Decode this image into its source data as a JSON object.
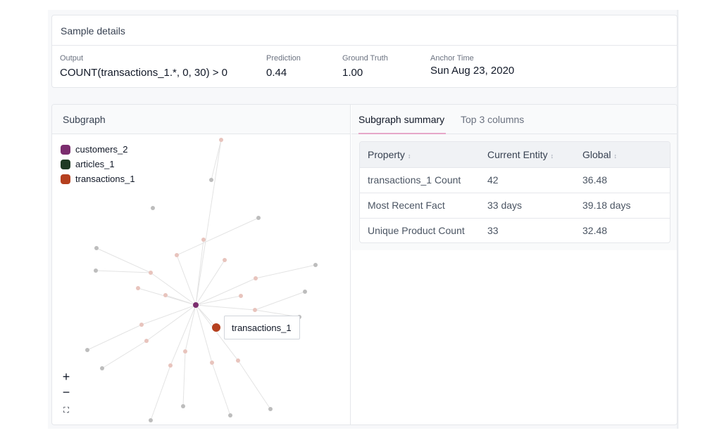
{
  "details": {
    "title": "Sample details",
    "output_label": "Output",
    "output_value": "COUNT(transactions_1.*, 0, 30) > 0",
    "prediction_label": "Prediction",
    "prediction_value": "0.44",
    "ground_truth_label": "Ground Truth",
    "ground_truth_value": "1.00",
    "anchor_time_label": "Anchor Time",
    "anchor_time_value": "Sun Aug 23, 2020"
  },
  "subgraph": {
    "title": "Subgraph",
    "legend": [
      {
        "label": "customers_2",
        "color": "#7b2d6e"
      },
      {
        "label": "articles_1",
        "color": "#1f3a24"
      },
      {
        "label": "transactions_1",
        "color": "#b5401f"
      }
    ],
    "tooltip": "transactions_1",
    "zoom_in": "+",
    "zoom_out": "−",
    "fit": "⛶"
  },
  "summary": {
    "tabs": [
      "Subgraph summary",
      "Top 3 columns"
    ],
    "active_tab": "Subgraph summary",
    "headers": [
      "Property",
      "Current Entity",
      "Global"
    ],
    "sort_glyph": "↕",
    "rows": [
      [
        "transactions_1 Count",
        "42",
        "36.48"
      ],
      [
        "Most Recent Fact",
        "33 days",
        "39.18 days"
      ],
      [
        "Unique Product Count",
        "33",
        "32.48"
      ]
    ]
  },
  "graph_colors": {
    "center": "#7b2d6e",
    "transaction": "#e8c4bd",
    "article": "#bdbdbd",
    "highlight": "#b5401f",
    "edge": "#e3e3e3"
  }
}
